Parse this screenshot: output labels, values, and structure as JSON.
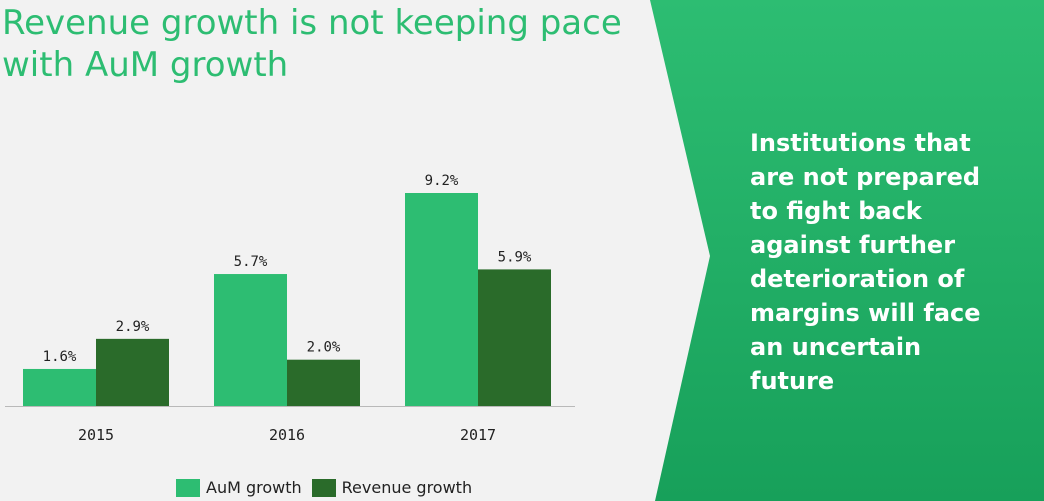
{
  "title": {
    "line1": "Revenue growth is not keeping pace",
    "line2": "with AuM growth"
  },
  "callout": {
    "lines": [
      "Institutions that",
      "are not prepared",
      "to fight back",
      "against further",
      "deterioration of",
      "margins will face",
      "an uncertain",
      "future"
    ]
  },
  "colors": {
    "title": "#2dbd72",
    "aum": "#2dbd72",
    "revenue": "#2a6b2a",
    "panel_light": "#2dbd72",
    "panel_dark": "#17a05a",
    "background": "#f2f2f2"
  },
  "chart_data": {
    "type": "bar",
    "title": "Revenue growth is not keeping pace with AuM growth",
    "categories": [
      "2015",
      "2016",
      "2017"
    ],
    "series": [
      {
        "name": "AuM growth",
        "values": [
          1.6,
          5.7,
          9.2
        ],
        "labels": [
          "1.6%",
          "5.7%",
          "9.2%"
        ]
      },
      {
        "name": "Revenue growth",
        "values": [
          2.9,
          2.0,
          5.9
        ],
        "labels": [
          "2.9%",
          "2.0%",
          "5.9%"
        ]
      }
    ],
    "xlabel": "",
    "ylabel": "",
    "ylim": [
      0,
      9.2
    ],
    "grid": false,
    "legend": "bottom"
  }
}
